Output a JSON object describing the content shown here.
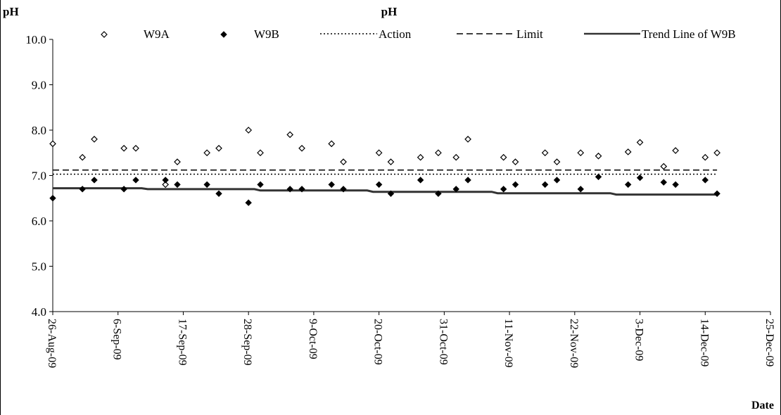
{
  "chart_data": {
    "type": "scatter",
    "title": "pH",
    "ylabel": "pH",
    "xlabel": "Date",
    "ylim": [
      4.0,
      10.0
    ],
    "yticks": [
      "4.0",
      "5.0",
      "6.0",
      "7.0",
      "8.0",
      "9.0",
      "10.0"
    ],
    "xlim": [
      "2009-08-26",
      "2009-12-25"
    ],
    "xticks": [
      "26-Aug-09",
      "6-Sep-09",
      "17-Sep-09",
      "28-Sep-09",
      "9-Oct-09",
      "20-Oct-09",
      "31-Oct-09",
      "11-Nov-09",
      "22-Nov-09",
      "3-Dec-09",
      "14-Dec-09",
      "25-Dec-09"
    ],
    "grid": false,
    "legend_position": "top",
    "series": [
      {
        "name": "W9A",
        "marker": "open-diamond",
        "color": "#000000",
        "points": [
          [
            "2009-08-26",
            7.7
          ],
          [
            "2009-08-31",
            7.4
          ],
          [
            "2009-09-02",
            7.8
          ],
          [
            "2009-09-07",
            7.6
          ],
          [
            "2009-09-09",
            7.6
          ],
          [
            "2009-09-14",
            6.8
          ],
          [
            "2009-09-16",
            7.3
          ],
          [
            "2009-09-21",
            7.5
          ],
          [
            "2009-09-23",
            7.6
          ],
          [
            "2009-09-28",
            8.0
          ],
          [
            "2009-09-30",
            7.5
          ],
          [
            "2009-10-05",
            7.9
          ],
          [
            "2009-10-07",
            7.6
          ],
          [
            "2009-10-12",
            7.7
          ],
          [
            "2009-10-14",
            7.3
          ],
          [
            "2009-10-20",
            7.5
          ],
          [
            "2009-10-22",
            7.3
          ],
          [
            "2009-10-27",
            7.4
          ],
          [
            "2009-10-30",
            7.5
          ],
          [
            "2009-11-02",
            7.4
          ],
          [
            "2009-11-04",
            7.8
          ],
          [
            "2009-11-10",
            7.4
          ],
          [
            "2009-11-12",
            7.3
          ],
          [
            "2009-11-17",
            7.5
          ],
          [
            "2009-11-19",
            7.3
          ],
          [
            "2009-11-23",
            7.5
          ],
          [
            "2009-11-26",
            7.43
          ],
          [
            "2009-12-01",
            7.52
          ],
          [
            "2009-12-03",
            7.73
          ],
          [
            "2009-12-07",
            7.2
          ],
          [
            "2009-12-09",
            7.55
          ],
          [
            "2009-12-14",
            7.4
          ],
          [
            "2009-12-16",
            7.5
          ]
        ]
      },
      {
        "name": "W9B",
        "marker": "filled-diamond",
        "color": "#000000",
        "points": [
          [
            "2009-08-26",
            6.5
          ],
          [
            "2009-08-31",
            6.7
          ],
          [
            "2009-09-02",
            6.9
          ],
          [
            "2009-09-07",
            6.7
          ],
          [
            "2009-09-09",
            6.9
          ],
          [
            "2009-09-14",
            6.9
          ],
          [
            "2009-09-16",
            6.8
          ],
          [
            "2009-09-21",
            6.8
          ],
          [
            "2009-09-23",
            6.6
          ],
          [
            "2009-09-28",
            6.4
          ],
          [
            "2009-09-30",
            6.8
          ],
          [
            "2009-10-05",
            6.7
          ],
          [
            "2009-10-07",
            6.7
          ],
          [
            "2009-10-12",
            6.8
          ],
          [
            "2009-10-14",
            6.7
          ],
          [
            "2009-10-20",
            6.8
          ],
          [
            "2009-10-22",
            6.6
          ],
          [
            "2009-10-27",
            6.9
          ],
          [
            "2009-10-30",
            6.6
          ],
          [
            "2009-11-02",
            6.7
          ],
          [
            "2009-11-04",
            6.9
          ],
          [
            "2009-11-10",
            6.7
          ],
          [
            "2009-11-12",
            6.8
          ],
          [
            "2009-11-17",
            6.8
          ],
          [
            "2009-11-19",
            6.9
          ],
          [
            "2009-11-23",
            6.7
          ],
          [
            "2009-11-26",
            6.97
          ],
          [
            "2009-12-01",
            6.8
          ],
          [
            "2009-12-03",
            6.95
          ],
          [
            "2009-12-07",
            6.85
          ],
          [
            "2009-12-09",
            6.8
          ],
          [
            "2009-12-14",
            6.9
          ],
          [
            "2009-12-16",
            6.6
          ]
        ]
      },
      {
        "name": "Action",
        "style": "dotted-line",
        "color": "#000000",
        "points": [
          [
            "2009-08-26",
            7.03
          ],
          [
            "2009-12-16",
            7.03
          ]
        ]
      },
      {
        "name": "Limit",
        "style": "dashed-line",
        "color": "#000000",
        "points": [
          [
            "2009-08-26",
            7.12
          ],
          [
            "2009-12-16",
            7.12
          ]
        ]
      },
      {
        "name": "Trend Line of W9B",
        "style": "solid-stepped-line",
        "color": "#333333",
        "points": [
          [
            "2009-08-26",
            6.72
          ],
          [
            "2009-09-10",
            6.72
          ],
          [
            "2009-09-11",
            6.7
          ],
          [
            "2009-09-29",
            6.7
          ],
          [
            "2009-09-30",
            6.67
          ],
          [
            "2009-10-18",
            6.67
          ],
          [
            "2009-10-19",
            6.64
          ],
          [
            "2009-11-08",
            6.64
          ],
          [
            "2009-11-09",
            6.61
          ],
          [
            "2009-11-28",
            6.61
          ],
          [
            "2009-11-29",
            6.58
          ],
          [
            "2009-12-16",
            6.58
          ]
        ]
      }
    ]
  }
}
